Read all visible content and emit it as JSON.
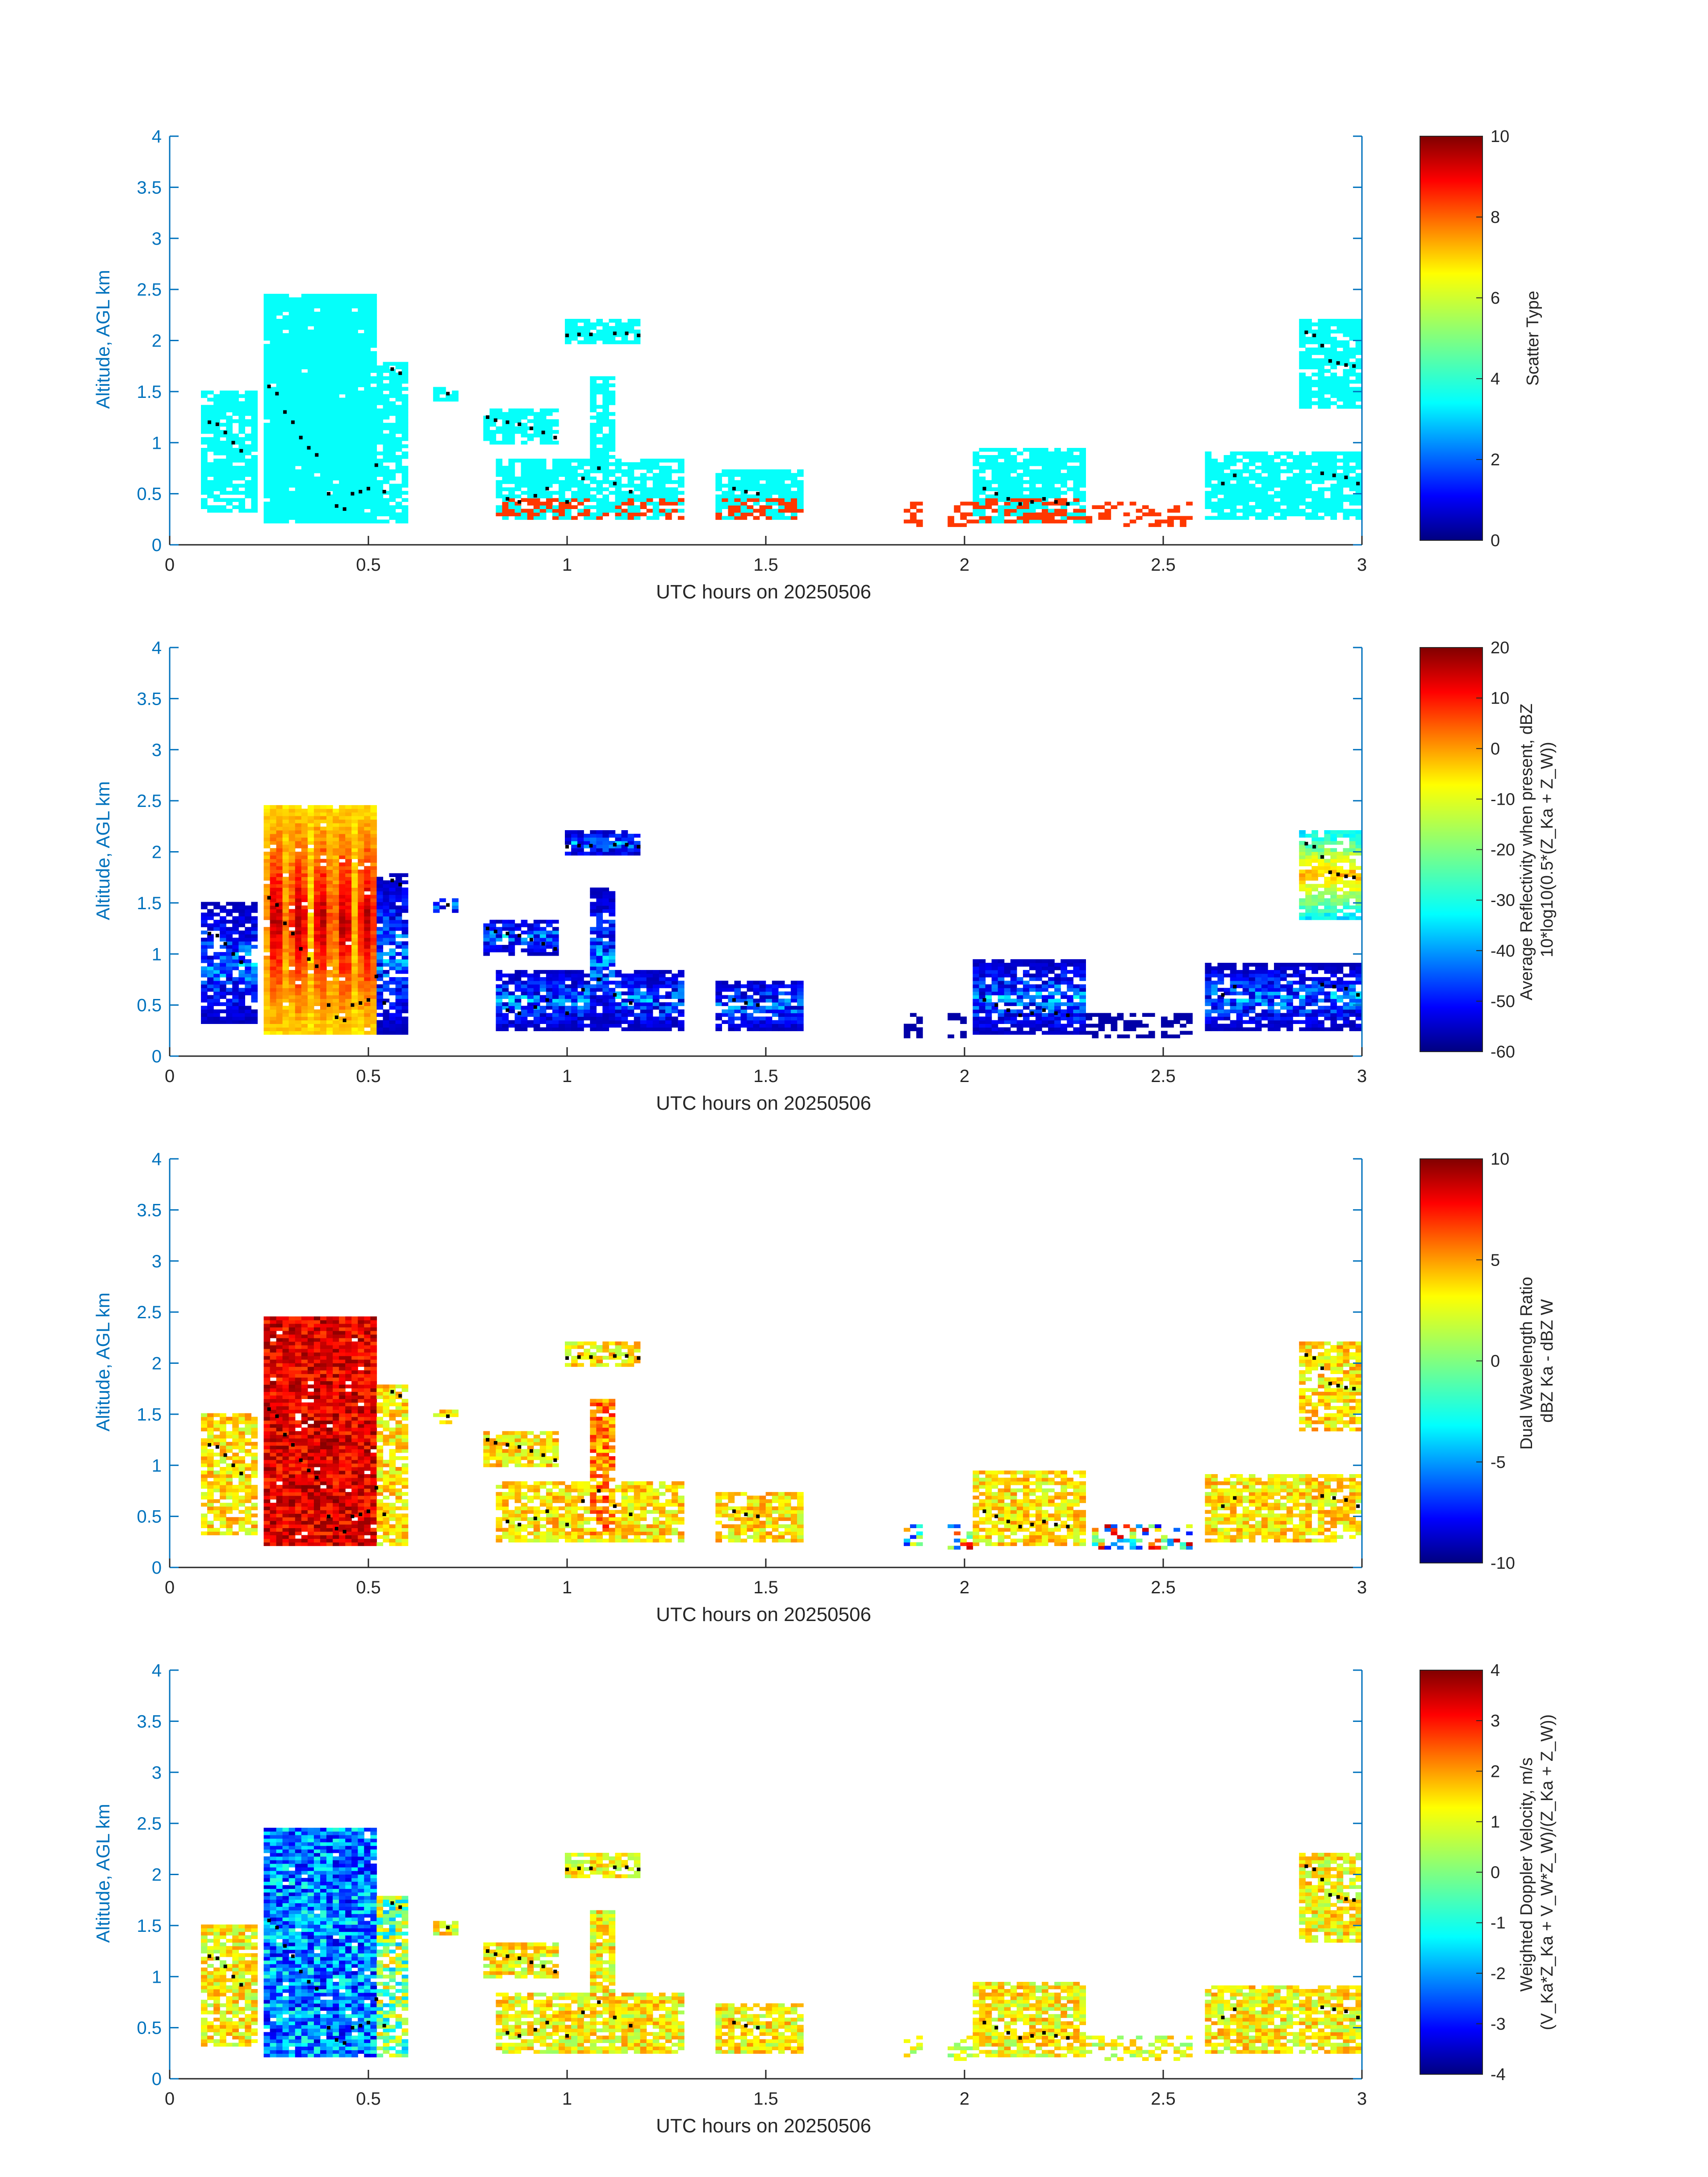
{
  "chart_data": [
    {
      "type": "heatmap",
      "quantity": "scatter",
      "xlabel": "UTC hours on 20250506",
      "ylabel": "Altitude, AGL km",
      "xlim": [
        0,
        3
      ],
      "ylim": [
        0,
        4
      ],
      "x_ticks": [
        "0",
        "0.5",
        "1",
        "1.5",
        "2",
        "2.5",
        "3"
      ],
      "y_ticks": [
        "0",
        "0.5",
        "1",
        "1.5",
        "2",
        "2.5",
        "3",
        "3.5",
        "4"
      ],
      "colorbar": {
        "label_lines": [
          "Scatter Type"
        ],
        "range": [
          0,
          10
        ],
        "ticks": [
          "0",
          "2",
          "4",
          "6",
          "8",
          "10"
        ]
      }
    },
    {
      "type": "heatmap",
      "quantity": "reflectivity",
      "xlabel": "UTC hours on 20250506",
      "ylabel": "Altitude, AGL km",
      "xlim": [
        0,
        3
      ],
      "ylim": [
        0,
        4
      ],
      "x_ticks": [
        "0",
        "0.5",
        "1",
        "1.5",
        "2",
        "2.5",
        "3"
      ],
      "y_ticks": [
        "0",
        "0.5",
        "1",
        "1.5",
        "2",
        "2.5",
        "3",
        "3.5",
        "4"
      ],
      "colorbar": {
        "label_lines": [
          "Average Reflectivity when present, dBZ",
          "10*log10(0.5*(Z_Ka + Z_W))"
        ],
        "range": [
          -60,
          20
        ],
        "ticks": [
          "-60",
          "-50",
          "-40",
          "-30",
          "-20",
          "-10",
          "0",
          "10",
          "20"
        ]
      }
    },
    {
      "type": "heatmap",
      "quantity": "dwr",
      "xlabel": "UTC hours on 20250506",
      "ylabel": "Altitude, AGL km",
      "xlim": [
        0,
        3
      ],
      "ylim": [
        0,
        4
      ],
      "x_ticks": [
        "0",
        "0.5",
        "1",
        "1.5",
        "2",
        "2.5",
        "3"
      ],
      "y_ticks": [
        "0",
        "0.5",
        "1",
        "1.5",
        "2",
        "2.5",
        "3",
        "3.5",
        "4"
      ],
      "colorbar": {
        "label_lines": [
          "Dual Wavelength Ratio",
          "dBZ Ka - dBZ W"
        ],
        "range": [
          -10,
          10
        ],
        "ticks": [
          "-10",
          "-5",
          "0",
          "5",
          "10"
        ]
      }
    },
    {
      "type": "heatmap",
      "quantity": "velocity",
      "xlabel": "UTC hours on 20250506",
      "ylabel": "Altitude, AGL km",
      "xlim": [
        0,
        3
      ],
      "ylim": [
        0,
        4
      ],
      "x_ticks": [
        "0",
        "0.5",
        "1",
        "1.5",
        "2",
        "2.5",
        "3"
      ],
      "y_ticks": [
        "0",
        "0.5",
        "1",
        "1.5",
        "2",
        "2.5",
        "3",
        "3.5",
        "4"
      ],
      "colorbar": {
        "label_lines": [
          "Weighted Doppler Velocity, m/s",
          "(V_Ka*Z_Ka + V_W*Z_W)/(Z_Ka + Z_W))"
        ],
        "range": [
          -4,
          4
        ],
        "ticks": [
          "-4",
          "-3",
          "-2",
          "-1",
          "0",
          "1",
          "2",
          "3",
          "4"
        ]
      }
    }
  ],
  "cloud_regions": [
    {
      "name": "storm-core",
      "t0": 0.24,
      "t1": 0.52,
      "top": 2.45,
      "bottom": 0.2
    },
    {
      "name": "left-cell",
      "t0": 0.08,
      "t1": 0.22,
      "top": 1.5,
      "bottom": 0.3
    },
    {
      "name": "right-fringe",
      "t0": 0.52,
      "t1": 0.6,
      "top": 1.8,
      "bottom": 0.2
    },
    {
      "name": "small-patch",
      "t0": 0.67,
      "t1": 0.72,
      "top": 1.55,
      "bottom": 1.4
    },
    {
      "name": "slanted-band",
      "t0": 0.79,
      "t1": 0.98,
      "top": 1.35,
      "bottom": 1.0
    },
    {
      "name": "upper-cap",
      "t0": 0.99,
      "t1": 1.18,
      "top": 2.2,
      "bottom": 1.95
    },
    {
      "name": "column",
      "t0": 1.06,
      "t1": 1.12,
      "top": 1.65,
      "bottom": 0.3
    },
    {
      "name": "low-layer-1",
      "t0": 0.82,
      "t1": 1.3,
      "top": 0.85,
      "bottom": 0.25
    },
    {
      "name": "low-layer-2",
      "t0": 1.38,
      "t1": 1.6,
      "top": 0.75,
      "bottom": 0.25
    },
    {
      "name": "low-layer-3",
      "t0": 2.02,
      "t1": 2.3,
      "top": 0.95,
      "bottom": 0.2
    },
    {
      "name": "right-cloud",
      "t0": 2.84,
      "t1": 3.0,
      "top": 2.2,
      "bottom": 1.35
    },
    {
      "name": "right-low",
      "t0": 2.6,
      "t1": 3.0,
      "top": 0.9,
      "bottom": 0.25
    }
  ],
  "sparse_segments": [
    {
      "t0": 1.84,
      "t1": 1.89
    },
    {
      "t0": 1.96,
      "t1": 2.02
    },
    {
      "t0": 2.3,
      "t1": 2.58
    }
  ],
  "marker_track": [
    [
      0.1,
      1.2
    ],
    [
      0.12,
      1.18
    ],
    [
      0.14,
      1.1
    ],
    [
      0.16,
      1.0
    ],
    [
      0.18,
      0.92
    ],
    [
      0.25,
      1.55
    ],
    [
      0.27,
      1.48
    ],
    [
      0.29,
      1.3
    ],
    [
      0.31,
      1.2
    ],
    [
      0.33,
      1.05
    ],
    [
      0.35,
      0.95
    ],
    [
      0.37,
      0.88
    ],
    [
      0.4,
      0.5
    ],
    [
      0.42,
      0.38
    ],
    [
      0.44,
      0.35
    ],
    [
      0.46,
      0.5
    ],
    [
      0.48,
      0.52
    ],
    [
      0.5,
      0.55
    ],
    [
      0.52,
      0.78
    ],
    [
      0.54,
      0.52
    ],
    [
      0.56,
      1.72
    ],
    [
      0.58,
      1.68
    ],
    [
      0.7,
      1.48
    ],
    [
      0.8,
      1.25
    ],
    [
      0.82,
      1.22
    ],
    [
      0.85,
      1.2
    ],
    [
      0.88,
      1.18
    ],
    [
      0.91,
      1.14
    ],
    [
      0.94,
      1.1
    ],
    [
      0.97,
      1.05
    ],
    [
      1.0,
      2.05
    ],
    [
      1.03,
      2.06
    ],
    [
      1.06,
      2.06
    ],
    [
      1.12,
      2.07
    ],
    [
      1.15,
      2.07
    ],
    [
      1.18,
      2.05
    ],
    [
      0.85,
      0.45
    ],
    [
      0.88,
      0.42
    ],
    [
      0.92,
      0.48
    ],
    [
      0.95,
      0.55
    ],
    [
      1.0,
      0.42
    ],
    [
      1.04,
      0.65
    ],
    [
      1.08,
      0.75
    ],
    [
      1.12,
      0.6
    ],
    [
      1.16,
      0.52
    ],
    [
      1.42,
      0.55
    ],
    [
      1.45,
      0.52
    ],
    [
      1.48,
      0.5
    ],
    [
      2.05,
      0.55
    ],
    [
      2.08,
      0.5
    ],
    [
      2.11,
      0.45
    ],
    [
      2.14,
      0.4
    ],
    [
      2.17,
      0.42
    ],
    [
      2.2,
      0.45
    ],
    [
      2.23,
      0.42
    ],
    [
      2.26,
      0.4
    ],
    [
      2.65,
      0.6
    ],
    [
      2.68,
      0.68
    ],
    [
      2.86,
      2.08
    ],
    [
      2.88,
      2.05
    ],
    [
      2.9,
      1.95
    ],
    [
      2.92,
      1.8
    ],
    [
      2.94,
      1.78
    ],
    [
      2.96,
      1.76
    ],
    [
      2.98,
      1.75
    ],
    [
      2.9,
      0.7
    ],
    [
      2.93,
      0.68
    ],
    [
      2.96,
      0.66
    ],
    [
      2.99,
      0.6
    ]
  ]
}
